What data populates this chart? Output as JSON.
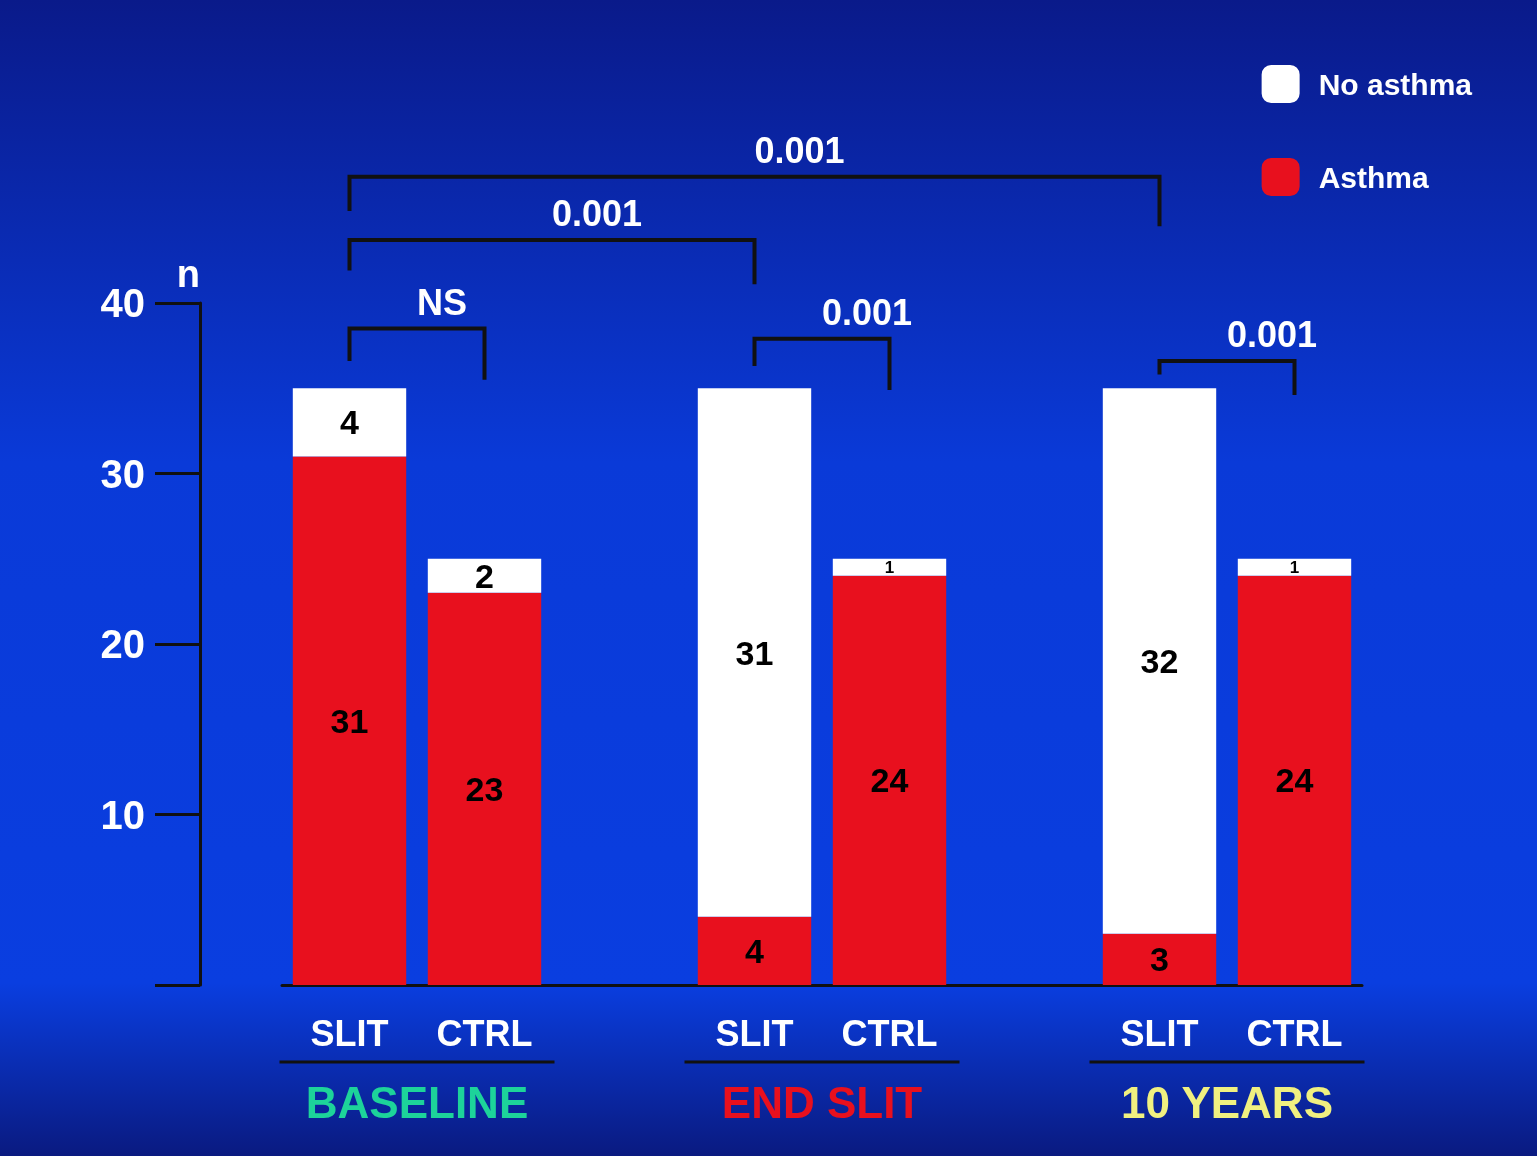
{
  "chart_data": {
    "type": "bar",
    "stacked": true,
    "ylabel": "n",
    "categories": [
      "SLIT",
      "CTRL",
      null,
      "SLIT",
      "CTRL",
      null,
      "SLIT",
      "CTRL"
    ],
    "series": [
      {
        "name": "Asthma",
        "color": "#e8101e",
        "values": [
          31,
          23,
          null,
          4,
          24,
          null,
          3,
          24
        ]
      },
      {
        "name": "No asthma",
        "color": "#ffffff",
        "values": [
          4,
          2,
          null,
          31,
          1,
          null,
          32,
          1
        ]
      }
    ],
    "ylim": [
      0,
      40
    ],
    "yticks": [
      {
        "value": 0,
        "label": null
      },
      10,
      20,
      30,
      40
    ],
    "data_labels": true,
    "legend": "top right",
    "grid": false,
    "annotations": [
      "0.001",
      "0.001",
      "NS",
      "0.001",
      "0.001",
      "BASELINE",
      "END SLIT",
      "10 YEARS"
    ]
  }
}
